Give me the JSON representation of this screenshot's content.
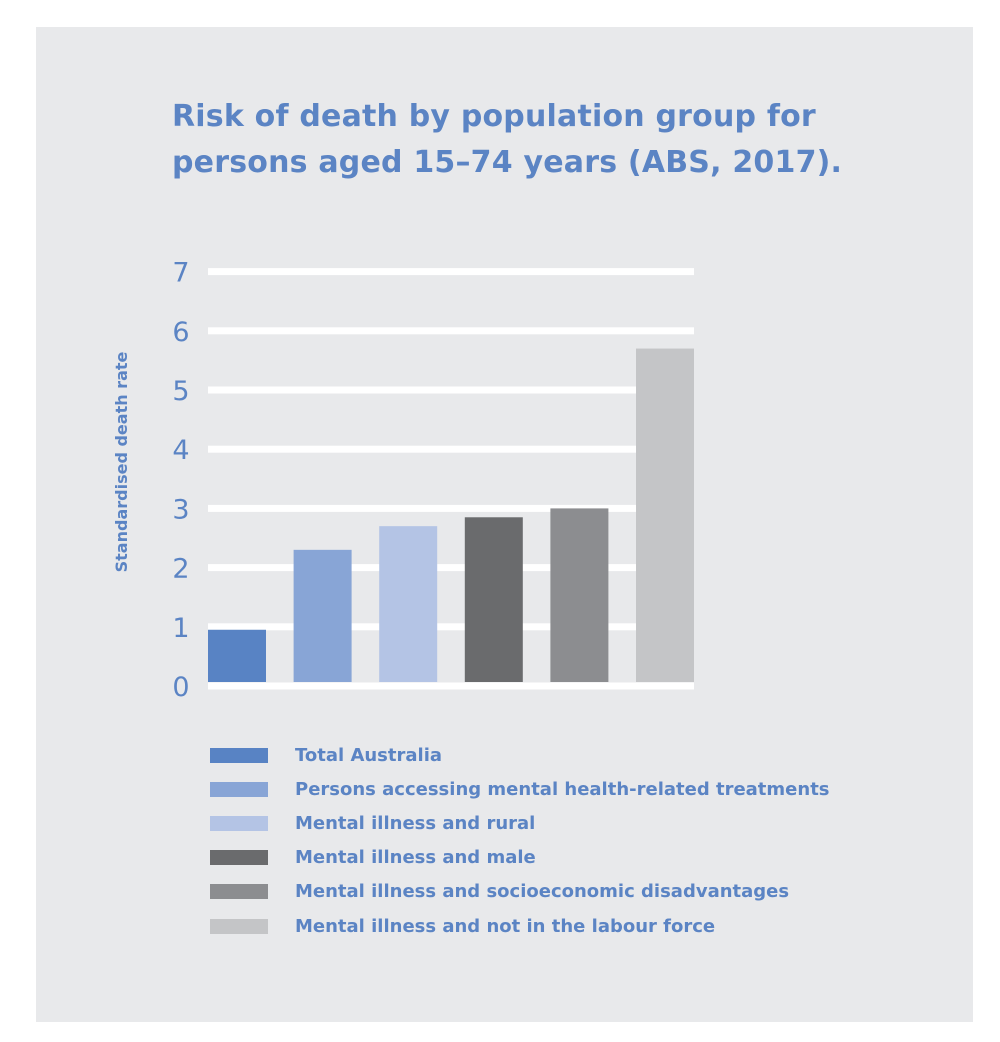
{
  "title_lines": [
    "Risk of death by population group for",
    "persons aged 15–74 years (ABS, 2017)."
  ],
  "chart_data": {
    "type": "bar",
    "title": "Risk of death by population group for persons aged 15–74 years (ABS, 2017).",
    "xlabel": "",
    "ylabel": "Standardised death rate",
    "ylim": [
      0,
      7
    ],
    "yticks": [
      0,
      1,
      2,
      3,
      4,
      5,
      6,
      7
    ],
    "grid": true,
    "legend_position": "bottom",
    "categories": [
      "Total Australia",
      "Persons accessing mental health-related treatments",
      "Mental illness and rural",
      "Mental illness and male",
      "Mental illness and socioeconomic disadvantages",
      "Mental illness and not in the labour force"
    ],
    "values": [
      0.95,
      2.3,
      2.7,
      2.85,
      3.0,
      5.7
    ],
    "colors": [
      "#5883c4",
      "#88a5d6",
      "#b4c4e5",
      "#6a6b6d",
      "#8c8d90",
      "#c4c5c7"
    ]
  },
  "theme": {
    "panel_background": "#e8e9eb",
    "gridline_color": "#ffffff",
    "text_color": "#5b84c4"
  }
}
